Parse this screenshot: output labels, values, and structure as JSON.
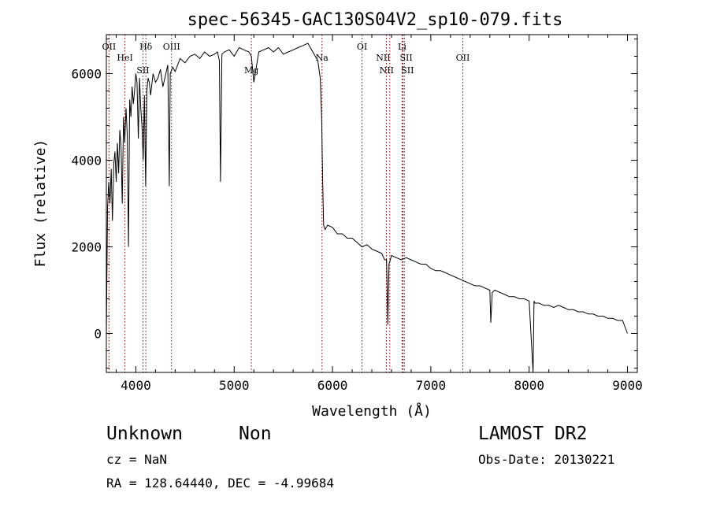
{
  "chart_data": {
    "type": "line",
    "title": "spec-56345-GAC130S04V2_sp10-079.fits",
    "xlabel": "Wavelength (Å)",
    "ylabel": "Flux (relative)",
    "xlim": [
      3700,
      9100
    ],
    "ylim": [
      -900,
      6900
    ],
    "xticks": [
      4000,
      5000,
      6000,
      7000,
      8000,
      9000
    ],
    "yticks": [
      0,
      2000,
      4000,
      6000
    ],
    "grid": false,
    "line_color": "#000000",
    "marker_line_color": "#8b0000",
    "series": [
      {
        "x": [
          3700,
          3712,
          3725,
          3737,
          3750,
          3762,
          3775,
          3787,
          3800,
          3812,
          3825,
          3837,
          3850,
          3862,
          3875,
          3887,
          3900,
          3912,
          3925,
          3937,
          3950,
          3962,
          3975,
          3987,
          4000,
          4012,
          4025,
          4037,
          4050,
          4062,
          4075,
          4087,
          4100,
          4112,
          4125,
          4137,
          4150,
          4175,
          4200,
          4225,
          4250,
          4275,
          4300,
          4325,
          4340,
          4350,
          4375,
          4400,
          4425,
          4450,
          4475,
          4500,
          4550,
          4600,
          4650,
          4700,
          4750,
          4800,
          4830,
          4850,
          4861,
          4875,
          4900,
          4950,
          5000,
          5050,
          5100,
          5150,
          5175,
          5200,
          5250,
          5300,
          5350,
          5400,
          5450,
          5500,
          5550,
          5600,
          5650,
          5700,
          5750,
          5800,
          5850,
          5875,
          5890,
          5900,
          5910,
          5925,
          5950,
          6000,
          6050,
          6100,
          6150,
          6200,
          6250,
          6300,
          6350,
          6400,
          6450,
          6500,
          6530,
          6550,
          6563,
          6575,
          6600,
          6650,
          6700,
          6750,
          6800,
          6850,
          6900,
          6950,
          7000,
          7050,
          7100,
          7150,
          7200,
          7250,
          7300,
          7350,
          7400,
          7450,
          7500,
          7550,
          7600,
          7610,
          7625,
          7650,
          7700,
          7750,
          7800,
          7850,
          7900,
          7950,
          8000,
          8040,
          8050,
          8060,
          8100,
          8150,
          8200,
          8250,
          8300,
          8350,
          8400,
          8450,
          8500,
          8550,
          8600,
          8650,
          8700,
          8750,
          8800,
          8850,
          8900,
          8950,
          9000
        ],
        "y": [
          -50,
          2900,
          3500,
          3000,
          3800,
          2600,
          3900,
          4200,
          3500,
          4400,
          3700,
          4700,
          4300,
          3000,
          5000,
          4400,
          5200,
          4600,
          2000,
          5400,
          5000,
          5700,
          5300,
          5600,
          6000,
          5800,
          4500,
          5900,
          5200,
          4800,
          4000,
          5500,
          3400,
          5600,
          5900,
          5800,
          5500,
          6000,
          5800,
          5900,
          6100,
          5700,
          5950,
          6200,
          3400,
          6000,
          6150,
          6050,
          6200,
          6350,
          6300,
          6250,
          6400,
          6450,
          6350,
          6500,
          6400,
          6450,
          6500,
          6300,
          3500,
          6450,
          6500,
          6550,
          6400,
          6600,
          6550,
          6500,
          6400,
          5800,
          6500,
          6550,
          6600,
          6500,
          6600,
          6450,
          6500,
          6550,
          6600,
          6650,
          6700,
          6500,
          6300,
          5900,
          5000,
          3500,
          2500,
          2400,
          2500,
          2450,
          2300,
          2300,
          2200,
          2200,
          2100,
          2000,
          2050,
          1950,
          1900,
          1850,
          1700,
          1700,
          200,
          1600,
          1800,
          1750,
          1700,
          1750,
          1700,
          1650,
          1600,
          1600,
          1500,
          1450,
          1450,
          1400,
          1350,
          1300,
          1250,
          1200,
          1150,
          1100,
          1100,
          1050,
          1000,
          250,
          950,
          1000,
          950,
          900,
          850,
          850,
          800,
          800,
          750,
          -900,
          750,
          700,
          700,
          650,
          650,
          600,
          650,
          600,
          550,
          550,
          500,
          500,
          450,
          450,
          400,
          400,
          350,
          350,
          300,
          300,
          0
        ]
      }
    ],
    "lines": [
      {
        "label": "OII",
        "x": 3727
      },
      {
        "label": "HeI",
        "x": 3889
      },
      {
        "label": "Hδ",
        "x": 4102
      },
      {
        "label": "SII",
        "x": 4072
      },
      {
        "label": "OIII",
        "x": 4363
      },
      {
        "label": "Mg",
        "x": 5175
      },
      {
        "label": "Na",
        "x": 5893
      },
      {
        "label": "OI",
        "x": 6300
      },
      {
        "label": "NII",
        "x": 6548
      },
      {
        "label": "NII",
        "x": 6583
      },
      {
        "label": "Li",
        "x": 6708
      },
      {
        "label": "SII",
        "x": 6717
      },
      {
        "label": "SII",
        "x": 6731
      },
      {
        "label": "OII",
        "x": 7325
      }
    ]
  },
  "footer": {
    "object_class": "Unknown",
    "object_subclass": "Non",
    "survey": "LAMOST DR2",
    "cz": "cz = NaN",
    "obs_date": "Obs-Date: 20130221",
    "coords": "RA = 128.64440, DEC =  -4.99684"
  }
}
